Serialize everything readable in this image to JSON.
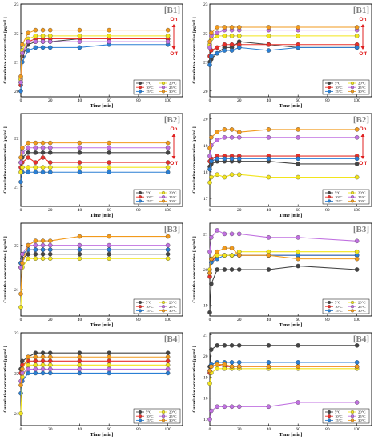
{
  "chart_data": [
    {
      "type": "line",
      "title": "[B1]",
      "xlabel": "Time [min]",
      "ylabel": "Cumulative concentration [μg/mL]",
      "xlim": [
        0,
        110
      ],
      "ylim": [
        19.8,
        23
      ],
      "xticks": [
        0,
        20,
        40,
        60,
        80,
        100
      ],
      "yticks": [
        20,
        21,
        22,
        23
      ],
      "x": [
        0,
        1,
        5,
        10,
        15,
        20,
        40,
        60,
        100
      ],
      "series": [
        {
          "name": "5°C",
          "color": "#444444",
          "values": [
            20.3,
            21.2,
            21.6,
            21.7,
            21.7,
            21.7,
            21.8,
            21.8,
            21.8
          ]
        },
        {
          "name": "10°C",
          "color": "#e8302a",
          "values": [
            20.2,
            21.3,
            21.7,
            21.8,
            21.8,
            21.8,
            21.8,
            21.8,
            21.8
          ]
        },
        {
          "name": "15°C",
          "color": "#2a7fd4",
          "values": [
            20.0,
            21.0,
            21.4,
            21.5,
            21.5,
            21.5,
            21.5,
            21.6,
            21.6
          ]
        },
        {
          "name": "20°C",
          "color": "#f2e51c",
          "values": [
            20.4,
            21.4,
            21.8,
            21.9,
            21.9,
            21.9,
            21.9,
            21.9,
            21.9
          ]
        },
        {
          "name": "25°C",
          "color": "#c070e0",
          "values": [
            20.3,
            21.3,
            21.7,
            21.7,
            21.7,
            21.7,
            21.7,
            21.7,
            21.7
          ]
        },
        {
          "name": "30°C",
          "color": "#f29a1c",
          "values": [
            20.5,
            21.6,
            22.0,
            22.1,
            22.1,
            22.1,
            22.1,
            22.1,
            22.1
          ]
        }
      ],
      "annotation": {
        "on": "On",
        "off": "Off"
      }
    },
    {
      "type": "line",
      "title": "[B1]",
      "xlabel": "Time [min]",
      "ylabel": "Cumulative concentration [μg/mL]",
      "xlim": [
        0,
        110
      ],
      "ylim": [
        19.8,
        23
      ],
      "xticks": [
        0,
        20,
        40,
        60,
        80,
        100
      ],
      "yticks": [
        20,
        21,
        22,
        23
      ],
      "x": [
        0,
        1,
        5,
        10,
        15,
        20,
        40,
        60,
        100
      ],
      "series": [
        {
          "name": "5°C",
          "color": "#444444",
          "values": [
            21.0,
            21.1,
            21.3,
            21.5,
            21.5,
            21.7,
            21.6,
            21.5,
            21.5
          ]
        },
        {
          "name": "10°C",
          "color": "#e8302a",
          "values": [
            21.2,
            21.4,
            21.5,
            21.6,
            21.6,
            21.6,
            21.6,
            21.6,
            21.6
          ]
        },
        {
          "name": "15°C",
          "color": "#2a7fd4",
          "values": [
            20.9,
            21.2,
            21.3,
            21.4,
            21.4,
            21.5,
            21.4,
            21.5,
            21.5
          ]
        },
        {
          "name": "20°C",
          "color": "#f2e51c",
          "values": [
            21.6,
            21.8,
            21.9,
            21.9,
            21.9,
            21.9,
            21.9,
            21.9,
            21.9
          ]
        },
        {
          "name": "25°C",
          "color": "#c070e0",
          "values": [
            21.5,
            21.9,
            22.0,
            22.1,
            22.1,
            22.1,
            22.1,
            22.1,
            22.1
          ]
        },
        {
          "name": "30°C",
          "color": "#f29a1c",
          "values": [
            21.7,
            22.0,
            22.2,
            22.2,
            22.2,
            22.2,
            22.2,
            22.2,
            22.2
          ]
        }
      ],
      "annotation": {
        "on": "On",
        "off": "Off"
      }
    },
    {
      "type": "line",
      "title": "[B2]",
      "xlabel": "Time [min]",
      "ylabel": "Cumulative concentration [μg/mL]",
      "xlim": [
        0,
        110
      ],
      "ylim": [
        20.6,
        22.5
      ],
      "xticks": [
        0,
        20,
        40,
        60,
        80,
        100
      ],
      "yticks": [
        21,
        22
      ],
      "x": [
        0,
        1,
        5,
        10,
        15,
        20,
        40,
        60,
        100
      ],
      "series": [
        {
          "name": "5°C",
          "color": "#444444",
          "values": [
            21.5,
            21.6,
            21.7,
            21.7,
            21.7,
            21.7,
            21.7,
            21.7,
            21.7
          ]
        },
        {
          "name": "10°C",
          "color": "#e8302a",
          "values": [
            21.4,
            21.5,
            21.6,
            21.5,
            21.6,
            21.5,
            21.5,
            21.5,
            21.5
          ]
        },
        {
          "name": "15°C",
          "color": "#2a7fd4",
          "values": [
            21.1,
            21.3,
            21.3,
            21.3,
            21.3,
            21.3,
            21.3,
            21.3,
            21.3
          ]
        },
        {
          "name": "20°C",
          "color": "#f2e51c",
          "values": [
            21.3,
            21.4,
            21.4,
            21.4,
            21.4,
            21.4,
            21.4,
            21.4,
            21.4
          ]
        },
        {
          "name": "25°C",
          "color": "#c070e0",
          "values": [
            21.5,
            21.7,
            21.8,
            21.8,
            21.8,
            21.8,
            21.8,
            21.8,
            21.8
          ]
        },
        {
          "name": "30°C",
          "color": "#f29a1c",
          "values": [
            21.6,
            21.8,
            21.9,
            21.9,
            21.9,
            21.9,
            21.9,
            21.9,
            21.9
          ]
        }
      ],
      "annotation": {
        "on": "On",
        "off": "Off"
      }
    },
    {
      "type": "line",
      "title": "[B2]",
      "xlabel": "Time [min]",
      "ylabel": "Cumulative concentration [μg/mL]",
      "xlim": [
        0,
        110
      ],
      "ylim": [
        16.7,
        20.2
      ],
      "xticks": [
        0,
        20,
        40,
        60,
        80,
        100
      ],
      "yticks": [
        17,
        18,
        19,
        20
      ],
      "x": [
        0,
        1,
        5,
        10,
        15,
        20,
        40,
        60,
        100
      ],
      "series": [
        {
          "name": "5°C",
          "color": "#444444",
          "values": [
            18.2,
            18.3,
            18.4,
            18.4,
            18.4,
            18.4,
            18.4,
            18.3,
            18.3
          ]
        },
        {
          "name": "10°C",
          "color": "#e8302a",
          "values": [
            18.4,
            18.5,
            18.6,
            18.6,
            18.6,
            18.6,
            18.6,
            18.6,
            18.6
          ]
        },
        {
          "name": "15°C",
          "color": "#2a7fd4",
          "values": [
            18.1,
            18.4,
            18.5,
            18.5,
            18.5,
            18.5,
            18.5,
            18.5,
            18.5
          ]
        },
        {
          "name": "20°C",
          "color": "#f2e51c",
          "values": [
            17.6,
            17.8,
            17.9,
            17.8,
            17.9,
            17.9,
            17.8,
            17.8,
            17.8
          ]
        },
        {
          "name": "25°C",
          "color": "#c070e0",
          "values": [
            18.6,
            19.0,
            19.2,
            19.3,
            19.3,
            19.3,
            19.3,
            19.3,
            19.3
          ]
        },
        {
          "name": "30°C",
          "color": "#f29a1c",
          "values": [
            18.9,
            19.3,
            19.5,
            19.6,
            19.6,
            19.5,
            19.6,
            19.6,
            19.6
          ]
        }
      ],
      "annotation": {
        "on": "On",
        "off": "Off"
      }
    },
    {
      "type": "line",
      "title": "[B3]",
      "xlabel": "Time [min]",
      "ylabel": "Cumulative concentration [μg/mL]",
      "xlim": [
        0,
        110
      ],
      "ylim": [
        20.4,
        22.5
      ],
      "xticks": [
        0,
        20,
        40,
        60,
        80,
        100
      ],
      "yticks": [
        21,
        22
      ],
      "x": [
        0,
        1,
        5,
        10,
        15,
        20,
        40,
        60,
        100
      ],
      "series": [
        {
          "name": "5°C",
          "color": "#444444",
          "values": [
            21.6,
            21.7,
            21.8,
            21.8,
            21.8,
            21.8,
            21.8,
            21.8,
            21.8
          ]
        },
        {
          "name": "10°C",
          "color": "#e8302a",
          "values": [
            21.5,
            21.8,
            21.9,
            21.9,
            21.9,
            21.9,
            21.9,
            21.9,
            21.9
          ]
        },
        {
          "name": "15°C",
          "color": "#2a7fd4",
          "values": [
            21.6,
            21.8,
            21.9,
            21.9,
            21.9,
            21.9,
            21.9,
            21.9,
            21.9
          ]
        },
        {
          "name": "20°C",
          "color": "#f2e51c",
          "values": [
            20.6,
            21.5,
            21.7,
            21.7,
            21.7,
            21.7,
            21.7,
            21.7,
            21.7
          ]
        },
        {
          "name": "25°C",
          "color": "#c070e0",
          "values": [
            21.5,
            21.8,
            22.0,
            22.0,
            22.0,
            22.0,
            22.0,
            22.0,
            22.0
          ]
        },
        {
          "name": "30°C",
          "color": "#f29a1c",
          "values": [
            20.9,
            21.6,
            22.0,
            22.1,
            22.1,
            22.1,
            22.2,
            22.2,
            22.2
          ]
        }
      ]
    },
    {
      "type": "line",
      "title": "[B3]",
      "xlabel": "Time [min]",
      "ylabel": "Cumulative concentration [μg/mL]",
      "xlim": [
        0,
        110
      ],
      "ylim": [
        18.7,
        21.3
      ],
      "xticks": [
        0,
        20,
        40,
        60,
        80,
        100
      ],
      "yticks": [
        19,
        20,
        21
      ],
      "x": [
        0,
        1,
        5,
        10,
        15,
        20,
        40,
        60,
        100
      ],
      "series": [
        {
          "name": "5°C",
          "color": "#444444",
          "values": [
            18.8,
            19.6,
            20.0,
            20.0,
            20.0,
            20.0,
            20.0,
            20.1,
            20.0
          ]
        },
        {
          "name": "10°C",
          "color": "#e8302a",
          "values": [
            19.8,
            20.2,
            20.4,
            20.4,
            20.4,
            20.4,
            20.4,
            20.4,
            20.4
          ]
        },
        {
          "name": "15°C",
          "color": "#2a7fd4",
          "values": [
            19.9,
            20.2,
            20.3,
            20.4,
            20.4,
            20.4,
            20.4,
            20.4,
            20.4
          ]
        },
        {
          "name": "20°C",
          "color": "#f2e51c",
          "values": [
            20.0,
            20.3,
            20.4,
            20.4,
            20.4,
            20.5,
            20.5,
            20.5,
            20.5
          ]
        },
        {
          "name": "25°C",
          "color": "#c070e0",
          "values": [
            20.5,
            20.9,
            21.1,
            21.0,
            21.0,
            21.0,
            20.9,
            20.9,
            20.8
          ]
        },
        {
          "name": "30°C",
          "color": "#f29a1c",
          "values": [
            19.9,
            20.3,
            20.5,
            20.6,
            20.6,
            20.4,
            20.4,
            20.3,
            20.3
          ]
        }
      ]
    },
    {
      "type": "line",
      "title": "[B4]",
      "xlabel": "Time [min]",
      "ylabel": "Cumulative concentration [μg/mL]",
      "xlim": [
        0,
        110
      ],
      "ylim": [
        20.7,
        23
      ],
      "xticks": [
        0,
        20,
        40,
        60,
        80,
        100
      ],
      "yticks": [
        21,
        22,
        23
      ],
      "x": [
        0,
        1,
        5,
        10,
        15,
        20,
        40,
        60,
        100
      ],
      "series": [
        {
          "name": "5°C",
          "color": "#444444",
          "values": [
            22.1,
            22.3,
            22.4,
            22.5,
            22.5,
            22.5,
            22.5,
            22.5,
            22.5
          ]
        },
        {
          "name": "10°C",
          "color": "#e8302a",
          "values": [
            22.0,
            22.2,
            22.3,
            22.3,
            22.3,
            22.3,
            22.3,
            22.3,
            22.3
          ]
        },
        {
          "name": "15°C",
          "color": "#2a7fd4",
          "values": [
            21.5,
            21.8,
            22.0,
            22.0,
            22.0,
            22.0,
            22.0,
            22.0,
            22.0
          ]
        },
        {
          "name": "20°C",
          "color": "#f2e51c",
          "values": [
            21.0,
            21.9,
            22.2,
            22.2,
            22.2,
            22.2,
            22.2,
            22.2,
            22.2
          ]
        },
        {
          "name": "25°C",
          "color": "#c070e0",
          "values": [
            21.8,
            22.0,
            22.1,
            22.1,
            22.1,
            22.1,
            22.1,
            22.1,
            22.1
          ]
        },
        {
          "name": "30°C",
          "color": "#f29a1c",
          "values": [
            21.7,
            22.1,
            22.4,
            22.4,
            22.4,
            22.4,
            22.4,
            22.4,
            22.4
          ]
        }
      ]
    },
    {
      "type": "line",
      "title": "[B4]",
      "xlabel": "Time [min]",
      "ylabel": "Cumulative concentration [μg/mL]",
      "xlim": [
        0,
        110
      ],
      "ylim": [
        16.7,
        21.1
      ],
      "xticks": [
        0,
        20,
        40,
        60,
        80,
        100
      ],
      "yticks": [
        17,
        18,
        19,
        20,
        21
      ],
      "x": [
        0,
        1,
        5,
        10,
        15,
        20,
        40,
        60,
        100
      ],
      "series": [
        {
          "name": "5°C",
          "color": "#444444",
          "values": [
            19.5,
            20.3,
            20.5,
            20.5,
            20.5,
            20.5,
            20.5,
            20.5,
            20.5
          ]
        },
        {
          "name": "10°C",
          "color": "#e8302a",
          "values": [
            19.2,
            19.5,
            19.6,
            19.5,
            19.5,
            19.5,
            19.5,
            19.5,
            19.5
          ]
        },
        {
          "name": "15°C",
          "color": "#2a7fd4",
          "values": [
            19.3,
            19.6,
            19.7,
            19.7,
            19.7,
            19.7,
            19.7,
            19.7,
            19.7
          ]
        },
        {
          "name": "20°C",
          "color": "#f2e51c",
          "values": [
            18.7,
            19.2,
            19.4,
            19.4,
            19.4,
            19.4,
            19.4,
            19.4,
            19.4
          ]
        },
        {
          "name": "25°C",
          "color": "#c070e0",
          "values": [
            17.0,
            17.4,
            17.6,
            17.6,
            17.6,
            17.6,
            17.6,
            17.8,
            17.8
          ]
        },
        {
          "name": "30°C",
          "color": "#f29a1c",
          "values": [
            19.3,
            19.5,
            19.6,
            19.6,
            19.5,
            19.5,
            19.5,
            19.5,
            19.5
          ]
        }
      ]
    }
  ]
}
